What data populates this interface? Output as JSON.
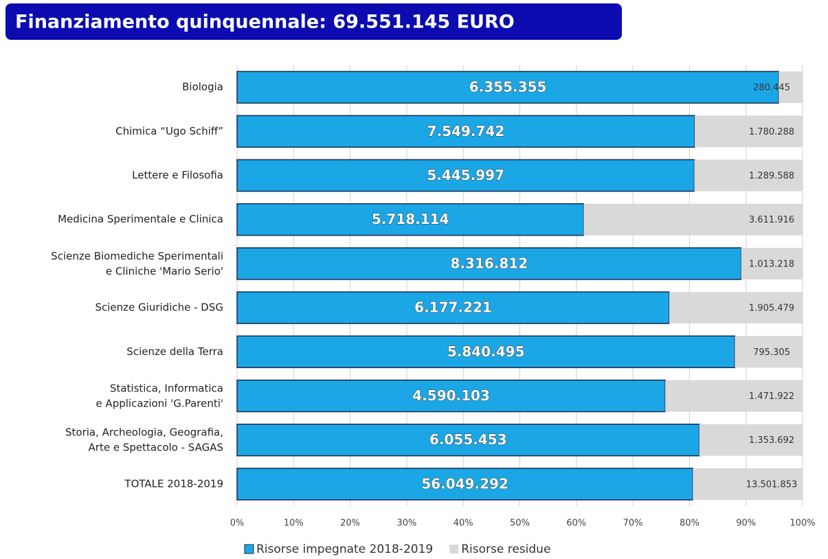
{
  "chart_data": {
    "type": "bar_stacked_percent",
    "orientation": "horizontal",
    "title": "Finanziamento quinquennale: 69.551.145 EURO",
    "categories": [
      "Biologia",
      "Chimica “Ugo Schiff”",
      "Lettere e Filosofia",
      "Medicina Sperimentale e Clinica",
      "Scienze Biomediche Sperimentali\ne Cliniche 'Mario Serio'",
      "Scienze Giuridiche - DSG",
      "Scienze della Terra",
      "Statistica, Informatica\ne Applicazioni 'G.Parenti'",
      "Storia, Archeologia, Geografia,\nArte e Spettacolo - SAGAS",
      "TOTALE 2018-2019"
    ],
    "series": [
      {
        "name": "Risorse impegnate 2018-2019",
        "color": "#1ba7e6",
        "values": [
          6355355,
          7549742,
          5445997,
          5718114,
          8316812,
          6177221,
          5840495,
          4590103,
          6055453,
          56049292
        ],
        "value_labels": [
          "6.355.355",
          "7.549.742",
          "5.445.997",
          "5.718.114",
          "8.316.812",
          "6.177.221",
          "5.840.495",
          "4.590.103",
          "6.055.453",
          "56.049.292"
        ]
      },
      {
        "name": "Risorse residue",
        "color": "#d9d9d9",
        "values": [
          280445,
          1780288,
          1289588,
          3611916,
          1013218,
          1905479,
          795305,
          1471922,
          1353692,
          13501853
        ],
        "value_labels": [
          "280.445",
          "1.780.288",
          "1.289.588",
          "3.611.916",
          "1.013.218",
          "1.905.479",
          "795.305",
          "1.471.922",
          "1.353.692",
          "13.501.853"
        ]
      }
    ],
    "xlim": [
      0,
      100
    ],
    "xticks": [
      {
        "value": 0,
        "label": "0%"
      },
      {
        "value": 10,
        "label": "10%"
      },
      {
        "value": 20,
        "label": "20%"
      },
      {
        "value": 30,
        "label": "30%"
      },
      {
        "value": 40,
        "label": "40%"
      },
      {
        "value": 50,
        "label": "50%"
      },
      {
        "value": 60,
        "label": "60%"
      },
      {
        "value": 70,
        "label": "70%"
      },
      {
        "value": 80,
        "label": "80%"
      },
      {
        "value": 90,
        "label": "90%"
      },
      {
        "value": 100,
        "label": "100%"
      }
    ],
    "grid": true,
    "legend": "bottom"
  }
}
